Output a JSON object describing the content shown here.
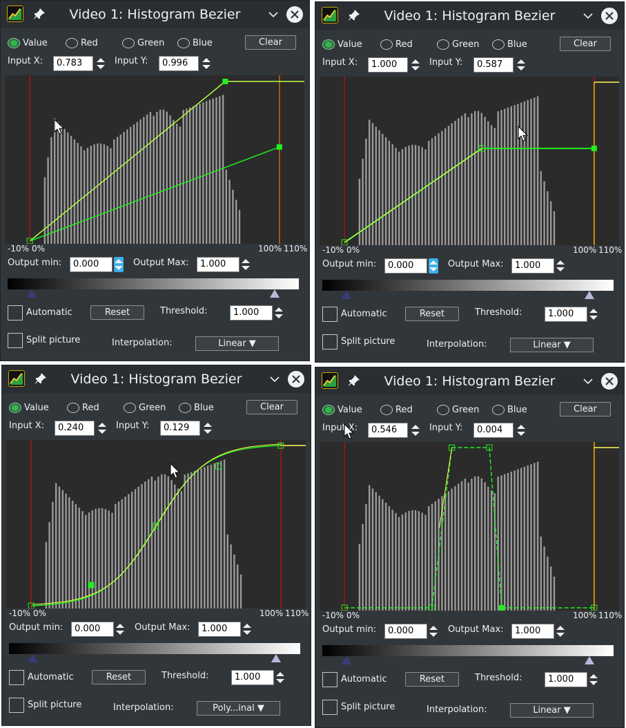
{
  "panels": [
    {
      "title": "Video 1: Histogram Bezier",
      "channels": [
        "Value",
        "Red",
        "Green",
        "Blue"
      ],
      "selected_channel": "Value",
      "clear_label": "Clear",
      "input_x_label": "Input X:",
      "input_x": "0.783",
      "input_y_label": "Input Y:",
      "input_y": "0.996",
      "tick_labels": {
        "m10": "-10%",
        "zero": "0%",
        "hundred": "100%",
        "hundred_ten": "110%"
      },
      "output_min_label": "Output min:",
      "output_min": "0.000",
      "output_max_label": "Output Max:",
      "output_max": "1.000",
      "automatic_label": "Automatic",
      "reset_label": "Reset",
      "threshold_label": "Threshold:",
      "threshold": "1.000",
      "split_label": "Split picture",
      "interpolation_label": "Interpolation:",
      "interpolation": "Linear"
    },
    {
      "title": "Video 1: Histogram Bezier",
      "channels": [
        "Value",
        "Red",
        "Green",
        "Blue"
      ],
      "selected_channel": "Value",
      "clear_label": "Clear",
      "input_x_label": "Input X:",
      "input_x": "1.000",
      "input_y_label": "Input Y:",
      "input_y": "0.587",
      "tick_labels": {
        "m10": "-10%",
        "zero": "0%",
        "hundred": "100%",
        "hundred_ten": "110%"
      },
      "output_min_label": "Output min:",
      "output_min": "0.000",
      "output_max_label": "Output Max:",
      "output_max": "1.000",
      "automatic_label": "Automatic",
      "reset_label": "Reset",
      "threshold_label": "Threshold:",
      "threshold": "1.000",
      "split_label": "Split picture",
      "interpolation_label": "Interpolation:",
      "interpolation": "Linear"
    },
    {
      "title": "Video 1: Histogram Bezier",
      "channels": [
        "Value",
        "Red",
        "Green",
        "Blue"
      ],
      "selected_channel": "Value",
      "clear_label": "Clear",
      "input_x_label": "Input X:",
      "input_x": "0.240",
      "input_y_label": "Input Y:",
      "input_y": "0.129",
      "tick_labels": {
        "m10": "-10%",
        "zero": "0%",
        "hundred": "100%",
        "hundred_ten": "110%"
      },
      "output_min_label": "Output min:",
      "output_min": "0.000",
      "output_max_label": "Output Max:",
      "output_max": "1.000",
      "automatic_label": "Automatic",
      "reset_label": "Reset",
      "threshold_label": "Threshold:",
      "threshold": "1.000",
      "split_label": "Split picture",
      "interpolation_label": "Interpolation:",
      "interpolation": "Poly...inal"
    },
    {
      "title": "Video 1: Histogram Bezier",
      "channels": [
        "Value",
        "Red",
        "Green",
        "Blue"
      ],
      "selected_channel": "Value",
      "clear_label": "Clear",
      "input_x_label": "Input X:",
      "input_x": "0.546",
      "input_y_label": "Input Y:",
      "input_y": "0.004",
      "tick_labels": {
        "m10": "-10%",
        "zero": "0%",
        "hundred": "100%",
        "hundred_ten": "110%"
      },
      "output_min_label": "Output min:",
      "output_min": "0.000",
      "output_max_label": "Output Max:",
      "output_max": "1.000",
      "automatic_label": "Automatic",
      "reset_label": "Reset",
      "threshold_label": "Threshold:",
      "threshold": "1.000",
      "split_label": "Split picture",
      "interpolation_label": "Interpolation:",
      "interpolation": "Linear"
    }
  ],
  "colors": {
    "panel_bg": "#31363b",
    "graph_bg": "#2b2b2b",
    "histogram": "#9a9a9a",
    "curve_green": "#22ee22",
    "curve_yellow": "#ffff55",
    "range_red": "#aa1111",
    "accent_blue": "#3daee9"
  }
}
